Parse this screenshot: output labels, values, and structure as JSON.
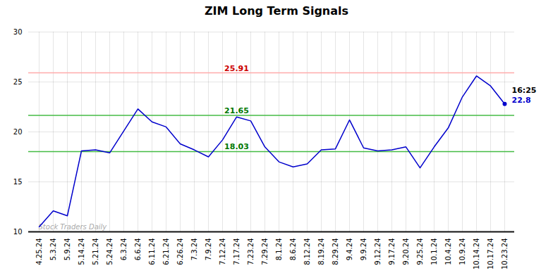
{
  "chart_data": {
    "type": "line",
    "title": "ZIM Long Term Signals",
    "categories": [
      "4.25.24",
      "5.3.24",
      "5.9.24",
      "5.14.24",
      "5.21.24",
      "5.24.24",
      "6.3.24",
      "6.6.24",
      "6.11.24",
      "6.21.24",
      "6.26.24",
      "7.3.24",
      "7.9.24",
      "7.12.24",
      "7.17.24",
      "7.23.24",
      "7.29.24",
      "8.1.24",
      "8.6.24",
      "8.12.24",
      "8.19.24",
      "8.29.24",
      "9.4.24",
      "9.9.24",
      "9.12.24",
      "9.17.24",
      "9.20.24",
      "9.25.24",
      "10.1.24",
      "10.4.24",
      "10.9.24",
      "10.14.24",
      "10.17.24",
      "10.23.24"
    ],
    "values": [
      10.5,
      12.1,
      11.6,
      18.1,
      18.2,
      17.9,
      20.1,
      22.3,
      21.0,
      20.5,
      18.8,
      18.2,
      17.5,
      19.2,
      21.5,
      21.1,
      18.5,
      17.0,
      16.5,
      16.8,
      18.2,
      18.3,
      21.2,
      18.4,
      18.1,
      18.2,
      18.5,
      16.4,
      18.5,
      20.4,
      23.5,
      25.6,
      24.6,
      22.8
    ],
    "color": "#0000cc",
    "ylim": [
      10,
      30
    ],
    "yticks": [
      10,
      15,
      20,
      25,
      30
    ],
    "grid": true,
    "reference_lines": [
      {
        "value": 25.91,
        "color": "#ffaaaa",
        "label_color": "#cc0000"
      },
      {
        "value": 21.65,
        "color": "#44bb44",
        "label_color": "#007700"
      },
      {
        "value": 18.03,
        "color": "#44bb44",
        "label_color": "#007700"
      }
    ],
    "watermark": {
      "text": "Stock Traders Daily",
      "color": "#aaaaaa"
    },
    "last_point": {
      "time": "16:25",
      "price": 22.8,
      "time_color": "#000000",
      "price_color": "#0000cc"
    }
  }
}
